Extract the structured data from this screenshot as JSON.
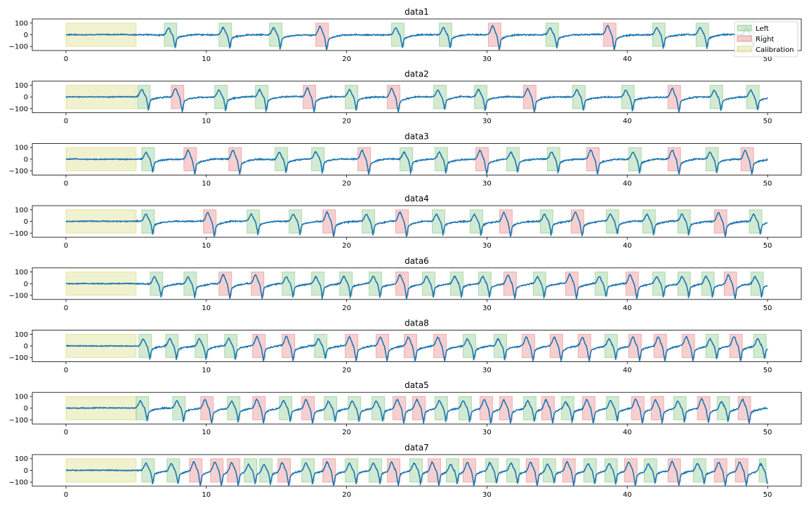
{
  "chart_data": {
    "type": "line",
    "x_ticks": [
      "0",
      "10",
      "20",
      "30",
      "40",
      "50"
    ],
    "y_ticks": [
      "100",
      "0",
      "−100"
    ],
    "xlim": [
      -2.4,
      52.4
    ],
    "ylim": [
      -135,
      135
    ],
    "legend": {
      "placement": "upper right of first panel",
      "items": [
        {
          "label": "Left",
          "color": "#2ca02c"
        },
        {
          "label": "Right",
          "color": "#d62728"
        },
        {
          "label": "Calibration",
          "color": "#bcbd22"
        }
      ]
    },
    "colors": {
      "line": "#1f77b4",
      "left": "#2ca02c",
      "right": "#d62728",
      "calibration": "#bcbd22"
    },
    "panels": [
      {
        "title": "data1",
        "calibration": [
          0,
          5
        ],
        "intervals": [
          {
            "start": 7.0,
            "end": 7.9,
            "side": "Left"
          },
          {
            "start": 10.9,
            "end": 11.8,
            "side": "Left"
          },
          {
            "start": 14.5,
            "end": 15.4,
            "side": "Left"
          },
          {
            "start": 17.8,
            "end": 18.7,
            "side": "Right"
          },
          {
            "start": 23.2,
            "end": 24.1,
            "side": "Left"
          },
          {
            "start": 26.6,
            "end": 27.5,
            "side": "Left"
          },
          {
            "start": 30.1,
            "end": 31.0,
            "side": "Right"
          },
          {
            "start": 34.2,
            "end": 35.1,
            "side": "Left"
          },
          {
            "start": 38.3,
            "end": 39.2,
            "side": "Right"
          },
          {
            "start": 41.8,
            "end": 42.7,
            "side": "Left"
          },
          {
            "start": 44.9,
            "end": 45.8,
            "side": "Left"
          },
          {
            "start": 48.2,
            "end": 49.1,
            "side": "Left"
          }
        ]
      },
      {
        "title": "data2",
        "calibration": [
          0,
          5
        ],
        "intervals": [
          {
            "start": 5.1,
            "end": 6.0,
            "side": "Left"
          },
          {
            "start": 7.5,
            "end": 8.4,
            "side": "Right"
          },
          {
            "start": 10.6,
            "end": 11.5,
            "side": "Left"
          },
          {
            "start": 13.5,
            "end": 14.4,
            "side": "Left"
          },
          {
            "start": 16.9,
            "end": 17.8,
            "side": "Right"
          },
          {
            "start": 19.9,
            "end": 20.8,
            "side": "Left"
          },
          {
            "start": 22.9,
            "end": 23.8,
            "side": "Right"
          },
          {
            "start": 26.2,
            "end": 27.1,
            "side": "Left"
          },
          {
            "start": 29.1,
            "end": 30.0,
            "side": "Left"
          },
          {
            "start": 32.6,
            "end": 33.5,
            "side": "Right"
          },
          {
            "start": 36.1,
            "end": 37.0,
            "side": "Left"
          },
          {
            "start": 39.6,
            "end": 40.5,
            "side": "Left"
          },
          {
            "start": 42.9,
            "end": 43.8,
            "side": "Right"
          },
          {
            "start": 45.9,
            "end": 46.8,
            "side": "Left"
          },
          {
            "start": 48.5,
            "end": 49.4,
            "side": "Left"
          }
        ]
      },
      {
        "title": "data3",
        "calibration": [
          0,
          5
        ],
        "intervals": [
          {
            "start": 5.4,
            "end": 6.3,
            "side": "Left"
          },
          {
            "start": 8.4,
            "end": 9.3,
            "side": "Right"
          },
          {
            "start": 11.6,
            "end": 12.5,
            "side": "Right"
          },
          {
            "start": 14.9,
            "end": 15.8,
            "side": "Left"
          },
          {
            "start": 17.5,
            "end": 18.4,
            "side": "Left"
          },
          {
            "start": 20.8,
            "end": 21.7,
            "side": "Right"
          },
          {
            "start": 23.8,
            "end": 24.7,
            "side": "Left"
          },
          {
            "start": 26.3,
            "end": 27.2,
            "side": "Left"
          },
          {
            "start": 29.2,
            "end": 30.1,
            "side": "Right"
          },
          {
            "start": 31.4,
            "end": 32.3,
            "side": "Left"
          },
          {
            "start": 34.3,
            "end": 35.2,
            "side": "Left"
          },
          {
            "start": 37.1,
            "end": 38.0,
            "side": "Right"
          },
          {
            "start": 40.1,
            "end": 41.0,
            "side": "Left"
          },
          {
            "start": 42.9,
            "end": 43.8,
            "side": "Right"
          },
          {
            "start": 45.6,
            "end": 46.5,
            "side": "Left"
          },
          {
            "start": 48.1,
            "end": 49.0,
            "side": "Right"
          }
        ]
      },
      {
        "title": "data4",
        "calibration": [
          0,
          5
        ],
        "intervals": [
          {
            "start": 5.4,
            "end": 6.3,
            "side": "Left"
          },
          {
            "start": 9.8,
            "end": 10.7,
            "side": "Right"
          },
          {
            "start": 12.9,
            "end": 13.8,
            "side": "Left"
          },
          {
            "start": 15.9,
            "end": 16.8,
            "side": "Left"
          },
          {
            "start": 18.3,
            "end": 19.2,
            "side": "Right"
          },
          {
            "start": 21.1,
            "end": 22.0,
            "side": "Left"
          },
          {
            "start": 23.5,
            "end": 24.4,
            "side": "Right"
          },
          {
            "start": 26.1,
            "end": 27.0,
            "side": "Left"
          },
          {
            "start": 28.8,
            "end": 29.7,
            "side": "Left"
          },
          {
            "start": 30.9,
            "end": 31.8,
            "side": "Right"
          },
          {
            "start": 33.8,
            "end": 34.7,
            "side": "Left"
          },
          {
            "start": 36.0,
            "end": 36.9,
            "side": "Right"
          },
          {
            "start": 38.5,
            "end": 39.4,
            "side": "Left"
          },
          {
            "start": 41.1,
            "end": 42.0,
            "side": "Left"
          },
          {
            "start": 43.6,
            "end": 44.5,
            "side": "Left"
          },
          {
            "start": 46.2,
            "end": 47.1,
            "side": "Right"
          },
          {
            "start": 48.7,
            "end": 49.6,
            "side": "Left"
          }
        ]
      },
      {
        "title": "data6",
        "calibration": [
          0,
          5
        ],
        "intervals": [
          {
            "start": 6.0,
            "end": 6.9,
            "side": "Left"
          },
          {
            "start": 8.4,
            "end": 9.3,
            "side": "Left"
          },
          {
            "start": 10.9,
            "end": 11.8,
            "side": "Right"
          },
          {
            "start": 13.2,
            "end": 14.1,
            "side": "Right"
          },
          {
            "start": 15.4,
            "end": 16.3,
            "side": "Left"
          },
          {
            "start": 17.5,
            "end": 18.4,
            "side": "Left"
          },
          {
            "start": 19.5,
            "end": 20.4,
            "side": "Left"
          },
          {
            "start": 21.6,
            "end": 22.5,
            "side": "Left"
          },
          {
            "start": 23.5,
            "end": 24.4,
            "side": "Right"
          },
          {
            "start": 25.4,
            "end": 26.3,
            "side": "Left"
          },
          {
            "start": 27.4,
            "end": 28.3,
            "side": "Left"
          },
          {
            "start": 29.4,
            "end": 30.3,
            "side": "Left"
          },
          {
            "start": 31.2,
            "end": 32.1,
            "side": "Right"
          },
          {
            "start": 33.3,
            "end": 34.2,
            "side": "Left"
          },
          {
            "start": 35.6,
            "end": 36.5,
            "side": "Right"
          },
          {
            "start": 37.7,
            "end": 38.6,
            "side": "Left"
          },
          {
            "start": 39.9,
            "end": 40.8,
            "side": "Right"
          },
          {
            "start": 41.8,
            "end": 42.7,
            "side": "Left"
          },
          {
            "start": 43.6,
            "end": 44.5,
            "side": "Left"
          },
          {
            "start": 45.3,
            "end": 46.2,
            "side": "Left"
          },
          {
            "start": 46.9,
            "end": 47.8,
            "side": "Right"
          },
          {
            "start": 48.8,
            "end": 49.7,
            "side": "Left"
          }
        ]
      },
      {
        "title": "data8",
        "calibration": [
          0,
          5
        ],
        "intervals": [
          {
            "start": 5.2,
            "end": 6.1,
            "side": "Left"
          },
          {
            "start": 7.1,
            "end": 8.0,
            "side": "Left"
          },
          {
            "start": 9.2,
            "end": 10.1,
            "side": "Left"
          },
          {
            "start": 11.3,
            "end": 12.2,
            "side": "Left"
          },
          {
            "start": 13.3,
            "end": 14.2,
            "side": "Right"
          },
          {
            "start": 15.4,
            "end": 16.3,
            "side": "Right"
          },
          {
            "start": 17.7,
            "end": 18.6,
            "side": "Left"
          },
          {
            "start": 19.9,
            "end": 20.8,
            "side": "Right"
          },
          {
            "start": 22.1,
            "end": 23.0,
            "side": "Right"
          },
          {
            "start": 24.1,
            "end": 25.0,
            "side": "Right"
          },
          {
            "start": 26.2,
            "end": 27.1,
            "side": "Right"
          },
          {
            "start": 28.3,
            "end": 29.2,
            "side": "Left"
          },
          {
            "start": 30.5,
            "end": 31.4,
            "side": "Left"
          },
          {
            "start": 32.5,
            "end": 33.4,
            "side": "Right"
          },
          {
            "start": 34.5,
            "end": 35.4,
            "side": "Right"
          },
          {
            "start": 36.5,
            "end": 37.4,
            "side": "Right"
          },
          {
            "start": 38.4,
            "end": 39.3,
            "side": "Left"
          },
          {
            "start": 40.1,
            "end": 41.0,
            "side": "Right"
          },
          {
            "start": 41.9,
            "end": 42.8,
            "side": "Right"
          },
          {
            "start": 43.9,
            "end": 44.8,
            "side": "Right"
          },
          {
            "start": 45.6,
            "end": 46.5,
            "side": "Left"
          },
          {
            "start": 47.3,
            "end": 48.2,
            "side": "Right"
          },
          {
            "start": 49.0,
            "end": 49.9,
            "side": "Left"
          }
        ]
      },
      {
        "title": "data5",
        "calibration": [
          0,
          5
        ],
        "intervals": [
          {
            "start": 5.0,
            "end": 5.9,
            "side": "Left"
          },
          {
            "start": 7.6,
            "end": 8.5,
            "side": "Left"
          },
          {
            "start": 9.6,
            "end": 10.5,
            "side": "Right"
          },
          {
            "start": 11.5,
            "end": 12.4,
            "side": "Left"
          },
          {
            "start": 13.3,
            "end": 14.2,
            "side": "Right"
          },
          {
            "start": 15.2,
            "end": 16.1,
            "side": "Left"
          },
          {
            "start": 16.8,
            "end": 17.7,
            "side": "Right"
          },
          {
            "start": 18.4,
            "end": 19.3,
            "side": "Left"
          },
          {
            "start": 20.1,
            "end": 21.0,
            "side": "Left"
          },
          {
            "start": 21.8,
            "end": 22.7,
            "side": "Left"
          },
          {
            "start": 23.3,
            "end": 24.2,
            "side": "Right"
          },
          {
            "start": 24.7,
            "end": 25.6,
            "side": "Right"
          },
          {
            "start": 26.3,
            "end": 27.2,
            "side": "Left"
          },
          {
            "start": 28.0,
            "end": 28.9,
            "side": "Left"
          },
          {
            "start": 29.5,
            "end": 30.4,
            "side": "Right"
          },
          {
            "start": 30.9,
            "end": 31.8,
            "side": "Right"
          },
          {
            "start": 32.6,
            "end": 33.5,
            "side": "Left"
          },
          {
            "start": 33.9,
            "end": 34.8,
            "side": "Right"
          },
          {
            "start": 35.3,
            "end": 36.2,
            "side": "Left"
          },
          {
            "start": 36.8,
            "end": 37.7,
            "side": "Right"
          },
          {
            "start": 38.5,
            "end": 39.4,
            "side": "Left"
          },
          {
            "start": 40.3,
            "end": 41.2,
            "side": "Right"
          },
          {
            "start": 41.7,
            "end": 42.6,
            "side": "Right"
          },
          {
            "start": 43.3,
            "end": 44.2,
            "side": "Left"
          },
          {
            "start": 45.0,
            "end": 45.9,
            "side": "Right"
          },
          {
            "start": 46.4,
            "end": 47.3,
            "side": "Left"
          },
          {
            "start": 47.9,
            "end": 48.8,
            "side": "Right"
          }
        ]
      },
      {
        "title": "data7",
        "calibration": [
          0,
          5
        ],
        "intervals": [
          {
            "start": 5.4,
            "end": 6.3,
            "side": "Left"
          },
          {
            "start": 7.2,
            "end": 8.1,
            "side": "Left"
          },
          {
            "start": 8.8,
            "end": 9.7,
            "side": "Right"
          },
          {
            "start": 10.3,
            "end": 11.2,
            "side": "Right"
          },
          {
            "start": 11.5,
            "end": 12.4,
            "side": "Right"
          },
          {
            "start": 12.7,
            "end": 13.6,
            "side": "Left"
          },
          {
            "start": 13.8,
            "end": 14.7,
            "side": "Left"
          },
          {
            "start": 15.1,
            "end": 16.0,
            "side": "Right"
          },
          {
            "start": 16.8,
            "end": 17.7,
            "side": "Left"
          },
          {
            "start": 18.3,
            "end": 19.2,
            "side": "Right"
          },
          {
            "start": 19.9,
            "end": 20.8,
            "side": "Left"
          },
          {
            "start": 21.6,
            "end": 22.5,
            "side": "Left"
          },
          {
            "start": 22.9,
            "end": 23.8,
            "side": "Right"
          },
          {
            "start": 24.5,
            "end": 25.4,
            "side": "Left"
          },
          {
            "start": 25.8,
            "end": 26.7,
            "side": "Right"
          },
          {
            "start": 27.1,
            "end": 28.0,
            "side": "Left"
          },
          {
            "start": 28.3,
            "end": 29.2,
            "side": "Right"
          },
          {
            "start": 29.9,
            "end": 30.8,
            "side": "Left"
          },
          {
            "start": 31.4,
            "end": 32.3,
            "side": "Left"
          },
          {
            "start": 32.8,
            "end": 33.7,
            "side": "Right"
          },
          {
            "start": 34.0,
            "end": 34.9,
            "side": "Left"
          },
          {
            "start": 35.4,
            "end": 36.3,
            "side": "Right"
          },
          {
            "start": 36.9,
            "end": 37.8,
            "side": "Left"
          },
          {
            "start": 38.4,
            "end": 39.3,
            "side": "Left"
          },
          {
            "start": 39.8,
            "end": 40.7,
            "side": "Right"
          },
          {
            "start": 41.2,
            "end": 42.1,
            "side": "Left"
          },
          {
            "start": 42.9,
            "end": 43.8,
            "side": "Right"
          },
          {
            "start": 44.7,
            "end": 45.6,
            "side": "Left"
          },
          {
            "start": 46.2,
            "end": 47.1,
            "side": "Right"
          },
          {
            "start": 47.7,
            "end": 48.6,
            "side": "Right"
          },
          {
            "start": 49.4,
            "end": 49.9,
            "side": "Left"
          }
        ]
      }
    ]
  }
}
